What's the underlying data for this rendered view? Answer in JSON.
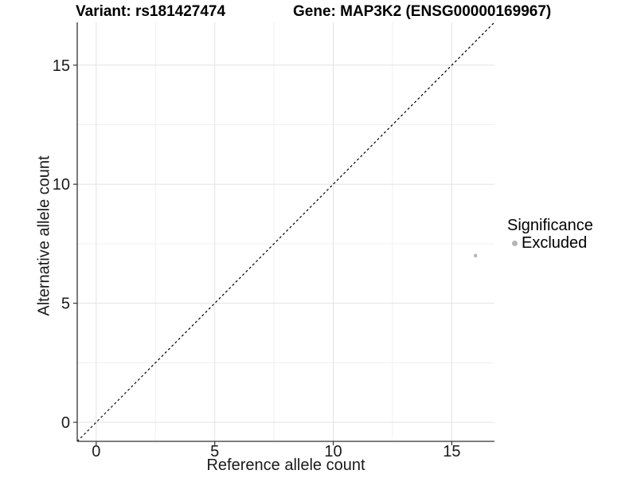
{
  "chart_data": {
    "type": "scatter",
    "title_variant": "Variant: rs181427474",
    "title_gene": "Gene: MAP3K2 (ENSG00000169967)",
    "xlabel": "Reference allele count",
    "ylabel": "Alternative allele count",
    "xlim": [
      -0.8,
      16.8
    ],
    "ylim": [
      -0.8,
      16.8
    ],
    "x_ticks": [
      0,
      5,
      10,
      15
    ],
    "y_ticks": [
      0,
      5,
      10,
      15
    ],
    "x_minor_ticks": [
      2.5,
      7.5,
      12.5
    ],
    "y_minor_ticks": [
      2.5,
      7.5,
      12.5
    ],
    "grid": "major+minor",
    "points": [
      {
        "x": 16,
        "y": 7,
        "significance": "Excluded"
      }
    ],
    "identity_line": {
      "style": "dashed",
      "slope": 1,
      "intercept": 0
    },
    "legend": {
      "title": "Significance",
      "position": "right",
      "items": [
        {
          "label": "Excluded",
          "color": "#b5b5b5"
        }
      ]
    },
    "colors": {
      "point": "#b5b5b5",
      "axis": "#333333",
      "tick_label": "#1a1a1a",
      "grid_major": "#e3e3e3",
      "grid_minor": "#f0f0f0",
      "identity_line": "#000000",
      "background": "#ffffff"
    }
  }
}
